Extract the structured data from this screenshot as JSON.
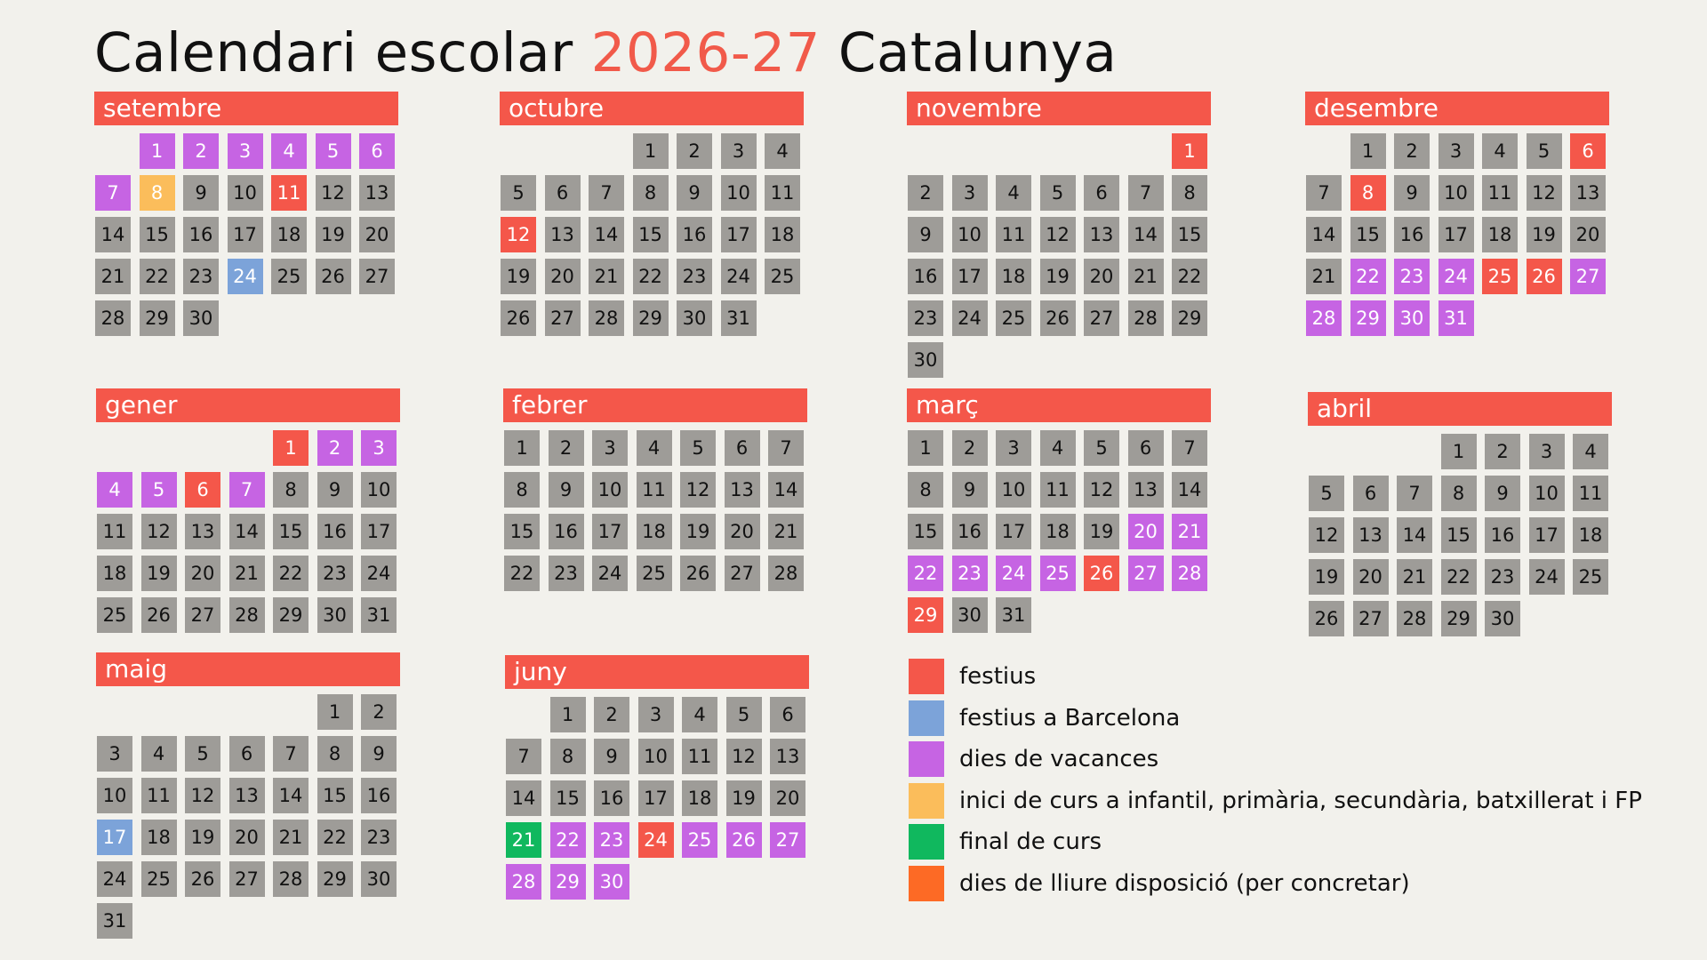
{
  "title": {
    "prefix": "Calendari escolar ",
    "year": "2026-27",
    "suffix": " Catalunya"
  },
  "colors": {
    "festiu": "#f4574a",
    "festiu_bcn": "#7ca3d9",
    "vacances": "#c664e3",
    "inici": "#fbbd5b",
    "final": "#10b85e",
    "lliure": "#fd6a25",
    "normal": "#9e9c98"
  },
  "months": [
    {
      "name": "setembre",
      "offset": 1,
      "days": 30,
      "marks": {
        "1": "vac",
        "2": "vac",
        "3": "vac",
        "4": "vac",
        "5": "vac",
        "6": "vac",
        "7": "vac",
        "8": "start",
        "11": "fest",
        "24": "bcn"
      }
    },
    {
      "name": "octubre",
      "offset": 3,
      "days": 31,
      "marks": {
        "12": "fest"
      }
    },
    {
      "name": "novembre",
      "offset": 6,
      "days": 30,
      "marks": {
        "1": "fest"
      }
    },
    {
      "name": "desembre",
      "offset": 1,
      "days": 31,
      "marks": {
        "6": "fest",
        "8": "fest",
        "22": "vac",
        "23": "vac",
        "24": "vac",
        "25": "fest",
        "26": "fest",
        "27": "vac",
        "28": "vac",
        "29": "vac",
        "30": "vac",
        "31": "vac"
      }
    },
    {
      "name": "gener",
      "offset": 4,
      "days": 31,
      "marks": {
        "1": "fest",
        "2": "vac",
        "3": "vac",
        "4": "vac",
        "5": "vac",
        "6": "fest",
        "7": "vac"
      }
    },
    {
      "name": "febrer",
      "offset": 0,
      "days": 28,
      "marks": {}
    },
    {
      "name": "març",
      "offset": 0,
      "days": 31,
      "marks": {
        "20": "vac",
        "21": "vac",
        "22": "vac",
        "23": "vac",
        "24": "vac",
        "25": "vac",
        "26": "fest",
        "27": "vac",
        "28": "vac",
        "29": "fest"
      }
    },
    {
      "name": "abril",
      "offset": 3,
      "days": 30,
      "marks": {}
    },
    {
      "name": "maig",
      "offset": 5,
      "days": 31,
      "marks": {
        "17": "bcn"
      }
    },
    {
      "name": "juny",
      "offset": 1,
      "days": 30,
      "marks": {
        "21": "end",
        "22": "vac",
        "23": "vac",
        "24": "fest",
        "25": "vac",
        "26": "vac",
        "27": "vac",
        "28": "vac",
        "29": "vac",
        "30": "vac"
      }
    }
  ],
  "legend": [
    {
      "label": "festius",
      "color": "#f4574a"
    },
    {
      "label": "festius a Barcelona",
      "color": "#7ca3d9"
    },
    {
      "label": "dies de vacances",
      "color": "#c664e3"
    },
    {
      "label": "inici de curs a infantil, primària, secundària, batxillerat i FP",
      "color": "#fbbd5b"
    },
    {
      "label": "final de curs",
      "color": "#10b85e"
    },
    {
      "label": "dies de lliure disposició (per concretar)",
      "color": "#fd6a25"
    }
  ]
}
